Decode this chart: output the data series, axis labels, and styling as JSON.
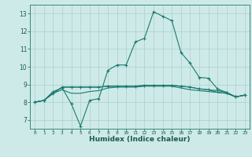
{
  "xlabel": "Humidex (Indice chaleur)",
  "background_color": "#ceeae8",
  "grid_color": "#aacfcc",
  "line_color": "#1a7a6e",
  "xlim": [
    -0.5,
    23.5
  ],
  "ylim": [
    6.5,
    13.5
  ],
  "xtick_labels": [
    "0",
    "1",
    "2",
    "3",
    "4",
    "5",
    "6",
    "7",
    "8",
    "9",
    "10",
    "11",
    "12",
    "13",
    "14",
    "15",
    "16",
    "17",
    "18",
    "19",
    "20",
    "21",
    "22",
    "23"
  ],
  "xtick_vals": [
    0,
    1,
    2,
    3,
    4,
    5,
    6,
    7,
    8,
    9,
    10,
    11,
    12,
    13,
    14,
    15,
    16,
    17,
    18,
    19,
    20,
    21,
    22,
    23
  ],
  "yticks": [
    7,
    8,
    9,
    10,
    11,
    12,
    13
  ],
  "series": [
    {
      "x": [
        0,
        1,
        2,
        3,
        4,
        5,
        6,
        7,
        8,
        9,
        10,
        11,
        12,
        13,
        14,
        15,
        16,
        17,
        18,
        19,
        20,
        21,
        22,
        23
      ],
      "y": [
        8.0,
        8.1,
        8.6,
        8.8,
        7.9,
        6.65,
        8.1,
        8.2,
        9.8,
        10.1,
        10.1,
        11.4,
        11.6,
        13.1,
        12.85,
        12.6,
        10.8,
        10.2,
        9.4,
        9.35,
        8.75,
        8.55,
        8.3,
        8.4
      ],
      "marker": "+"
    },
    {
      "x": [
        0,
        1,
        2,
        3,
        4,
        5,
        6,
        7,
        8,
        9,
        10,
        11,
        12,
        13,
        14,
        15,
        16,
        17,
        18,
        19,
        20,
        21,
        22,
        23
      ],
      "y": [
        8.0,
        8.1,
        8.5,
        8.85,
        8.85,
        8.85,
        8.85,
        8.85,
        8.9,
        8.9,
        8.9,
        8.9,
        8.95,
        8.95,
        8.95,
        8.95,
        8.9,
        8.85,
        8.75,
        8.7,
        8.65,
        8.55,
        8.3,
        8.4
      ],
      "marker": "+"
    },
    {
      "x": [
        0,
        1,
        2,
        3,
        4,
        5,
        6,
        7,
        8,
        9,
        10,
        11,
        12,
        13,
        14,
        15,
        16,
        17,
        18,
        19,
        20,
        21,
        22,
        23
      ],
      "y": [
        8.0,
        8.1,
        8.5,
        8.85,
        8.85,
        8.85,
        8.85,
        8.85,
        8.9,
        8.9,
        8.9,
        8.9,
        8.95,
        8.95,
        8.95,
        8.95,
        8.9,
        8.85,
        8.75,
        8.7,
        8.55,
        8.5,
        8.3,
        8.4
      ],
      "marker": null
    },
    {
      "x": [
        0,
        1,
        2,
        3,
        4,
        5,
        6,
        7,
        8,
        9,
        10,
        11,
        12,
        13,
        14,
        15,
        16,
        17,
        18,
        19,
        20,
        21,
        22,
        23
      ],
      "y": [
        8.0,
        8.1,
        8.5,
        8.7,
        8.5,
        8.5,
        8.6,
        8.65,
        8.8,
        8.85,
        8.85,
        8.85,
        8.9,
        8.9,
        8.9,
        8.9,
        8.8,
        8.7,
        8.65,
        8.6,
        8.55,
        8.5,
        8.3,
        8.4
      ],
      "marker": null
    }
  ]
}
